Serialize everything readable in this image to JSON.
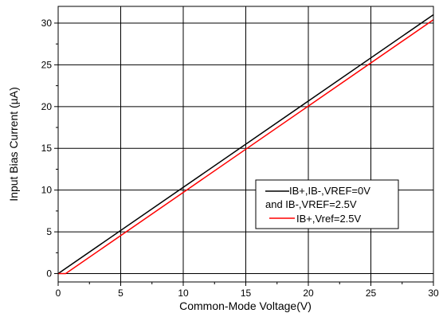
{
  "chart_data": {
    "type": "line",
    "title": "",
    "xlabel": "Common-Mode Voltage(V)",
    "ylabel": "Input Bias Current (µA)",
    "xlim": [
      0,
      30
    ],
    "ylim": [
      -1,
      32
    ],
    "x_ticks": [
      0,
      5,
      10,
      15,
      20,
      25,
      30
    ],
    "y_ticks": [
      0,
      5,
      10,
      15,
      20,
      25,
      30
    ],
    "grid": true,
    "legend_placement": "lower-right",
    "legend_lines": [
      "IB+,IB-,VREF=0V",
      "and IB-,VREF=2.5V",
      "IB+,Vref=2.5V"
    ],
    "series": [
      {
        "legend_label": "IB+,IB-,VREF=0V and IB-,VREF=2.5V",
        "color": "#000000",
        "x": [
          0,
          30
        ],
        "y": [
          0,
          31.0
        ]
      },
      {
        "legend_label": "IB+,Vref=2.5V",
        "color": "#ff0000",
        "x": [
          0,
          0.6,
          30
        ],
        "y": [
          0,
          0,
          30.4
        ]
      }
    ]
  }
}
